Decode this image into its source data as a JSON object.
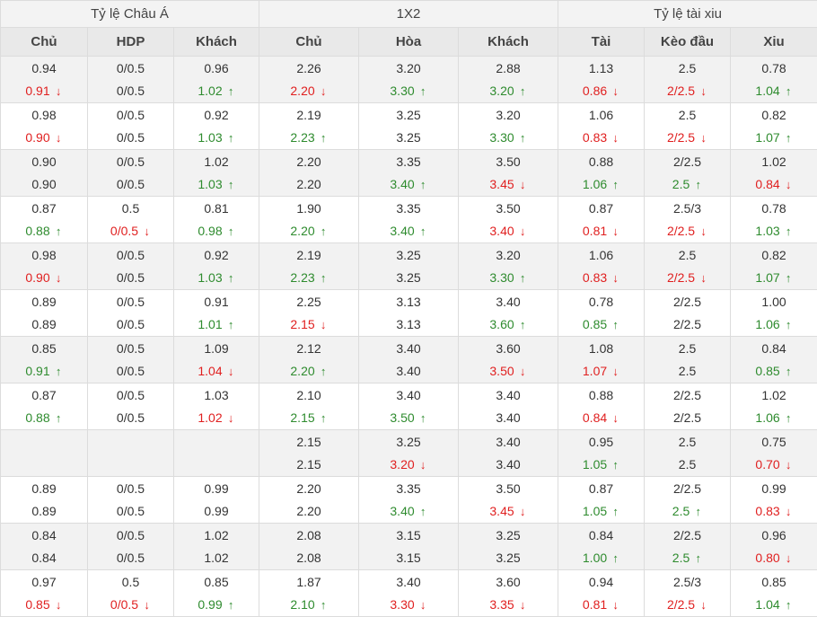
{
  "groups": [
    "Tỷ lệ Châu Á",
    "1X2",
    "Tỷ lệ tài xiu"
  ],
  "columns": [
    "Chủ",
    "HDP",
    "Khách",
    "Chủ",
    "Hòa",
    "Khách",
    "Tài",
    "Kèo đầu",
    "Xiu"
  ],
  "colors": {
    "up": "#2e8b2e",
    "down": "#e01f1f",
    "neutral": "#333333"
  },
  "rows": [
    [
      [
        "0.94",
        "0.91",
        "down"
      ],
      [
        "0/0.5",
        "0/0.5",
        ""
      ],
      [
        "0.96",
        "1.02",
        "up"
      ],
      [
        "2.26",
        "2.20",
        "down"
      ],
      [
        "3.20",
        "3.30",
        "up"
      ],
      [
        "2.88",
        "3.20",
        "up"
      ],
      [
        "1.13",
        "0.86",
        "down"
      ],
      [
        "2.5",
        "2/2.5",
        "down"
      ],
      [
        "0.78",
        "1.04",
        "up"
      ]
    ],
    [
      [
        "0.98",
        "0.90",
        "down"
      ],
      [
        "0/0.5",
        "0/0.5",
        ""
      ],
      [
        "0.92",
        "1.03",
        "up"
      ],
      [
        "2.19",
        "2.23",
        "up"
      ],
      [
        "3.25",
        "3.25",
        ""
      ],
      [
        "3.20",
        "3.30",
        "up"
      ],
      [
        "1.06",
        "0.83",
        "down"
      ],
      [
        "2.5",
        "2/2.5",
        "down"
      ],
      [
        "0.82",
        "1.07",
        "up"
      ]
    ],
    [
      [
        "0.90",
        "0.90",
        ""
      ],
      [
        "0/0.5",
        "0/0.5",
        ""
      ],
      [
        "1.02",
        "1.03",
        "up"
      ],
      [
        "2.20",
        "2.20",
        ""
      ],
      [
        "3.35",
        "3.40",
        "up"
      ],
      [
        "3.50",
        "3.45",
        "down"
      ],
      [
        "0.88",
        "1.06",
        "up"
      ],
      [
        "2/2.5",
        "2.5",
        "up"
      ],
      [
        "1.02",
        "0.84",
        "down"
      ]
    ],
    [
      [
        "0.87",
        "0.88",
        "up"
      ],
      [
        "0.5",
        "0/0.5",
        "down"
      ],
      [
        "0.81",
        "0.98",
        "up"
      ],
      [
        "1.90",
        "2.20",
        "up"
      ],
      [
        "3.35",
        "3.40",
        "up"
      ],
      [
        "3.50",
        "3.40",
        "down"
      ],
      [
        "0.87",
        "0.81",
        "down"
      ],
      [
        "2.5/3",
        "2/2.5",
        "down"
      ],
      [
        "0.78",
        "1.03",
        "up"
      ]
    ],
    [
      [
        "0.98",
        "0.90",
        "down"
      ],
      [
        "0/0.5",
        "0/0.5",
        ""
      ],
      [
        "0.92",
        "1.03",
        "up"
      ],
      [
        "2.19",
        "2.23",
        "up"
      ],
      [
        "3.25",
        "3.25",
        ""
      ],
      [
        "3.20",
        "3.30",
        "up"
      ],
      [
        "1.06",
        "0.83",
        "down"
      ],
      [
        "2.5",
        "2/2.5",
        "down"
      ],
      [
        "0.82",
        "1.07",
        "up"
      ]
    ],
    [
      [
        "0.89",
        "0.89",
        ""
      ],
      [
        "0/0.5",
        "0/0.5",
        ""
      ],
      [
        "0.91",
        "1.01",
        "up"
      ],
      [
        "2.25",
        "2.15",
        "down"
      ],
      [
        "3.13",
        "3.13",
        ""
      ],
      [
        "3.40",
        "3.60",
        "up"
      ],
      [
        "0.78",
        "0.85",
        "up"
      ],
      [
        "2/2.5",
        "2/2.5",
        ""
      ],
      [
        "1.00",
        "1.06",
        "up"
      ]
    ],
    [
      [
        "0.85",
        "0.91",
        "up"
      ],
      [
        "0/0.5",
        "0/0.5",
        ""
      ],
      [
        "1.09",
        "1.04",
        "down"
      ],
      [
        "2.12",
        "2.20",
        "up"
      ],
      [
        "3.40",
        "3.40",
        ""
      ],
      [
        "3.60",
        "3.50",
        "down"
      ],
      [
        "1.08",
        "1.07",
        "down"
      ],
      [
        "2.5",
        "2.5",
        ""
      ],
      [
        "0.84",
        "0.85",
        "up"
      ]
    ],
    [
      [
        "0.87",
        "0.88",
        "up"
      ],
      [
        "0/0.5",
        "0/0.5",
        ""
      ],
      [
        "1.03",
        "1.02",
        "down"
      ],
      [
        "2.10",
        "2.15",
        "up"
      ],
      [
        "3.40",
        "3.50",
        "up"
      ],
      [
        "3.40",
        "3.40",
        ""
      ],
      [
        "0.88",
        "0.84",
        "down"
      ],
      [
        "2/2.5",
        "2/2.5",
        ""
      ],
      [
        "1.02",
        "1.06",
        "up"
      ]
    ],
    [
      [
        "",
        "",
        ""
      ],
      [
        "",
        "",
        ""
      ],
      [
        "",
        "",
        ""
      ],
      [
        "2.15",
        "2.15",
        ""
      ],
      [
        "3.25",
        "3.20",
        "down"
      ],
      [
        "3.40",
        "3.40",
        ""
      ],
      [
        "0.95",
        "1.05",
        "up"
      ],
      [
        "2.5",
        "2.5",
        ""
      ],
      [
        "0.75",
        "0.70",
        "down"
      ]
    ],
    [
      [
        "0.89",
        "0.89",
        ""
      ],
      [
        "0/0.5",
        "0/0.5",
        ""
      ],
      [
        "0.99",
        "0.99",
        ""
      ],
      [
        "2.20",
        "2.20",
        ""
      ],
      [
        "3.35",
        "3.40",
        "up"
      ],
      [
        "3.50",
        "3.45",
        "down"
      ],
      [
        "0.87",
        "1.05",
        "up"
      ],
      [
        "2/2.5",
        "2.5",
        "up"
      ],
      [
        "0.99",
        "0.83",
        "down"
      ]
    ],
    [
      [
        "0.84",
        "0.84",
        ""
      ],
      [
        "0/0.5",
        "0/0.5",
        ""
      ],
      [
        "1.02",
        "1.02",
        ""
      ],
      [
        "2.08",
        "2.08",
        ""
      ],
      [
        "3.15",
        "3.15",
        ""
      ],
      [
        "3.25",
        "3.25",
        ""
      ],
      [
        "0.84",
        "1.00",
        "up"
      ],
      [
        "2/2.5",
        "2.5",
        "up"
      ],
      [
        "0.96",
        "0.80",
        "down"
      ]
    ],
    [
      [
        "0.97",
        "0.85",
        "down"
      ],
      [
        "0.5",
        "0/0.5",
        "down"
      ],
      [
        "0.85",
        "0.99",
        "up"
      ],
      [
        "1.87",
        "2.10",
        "up"
      ],
      [
        "3.40",
        "3.30",
        "down"
      ],
      [
        "3.60",
        "3.35",
        "down"
      ],
      [
        "0.94",
        "0.81",
        "down"
      ],
      [
        "2.5/3",
        "2/2.5",
        "down"
      ],
      [
        "0.85",
        "1.04",
        "up"
      ]
    ]
  ]
}
